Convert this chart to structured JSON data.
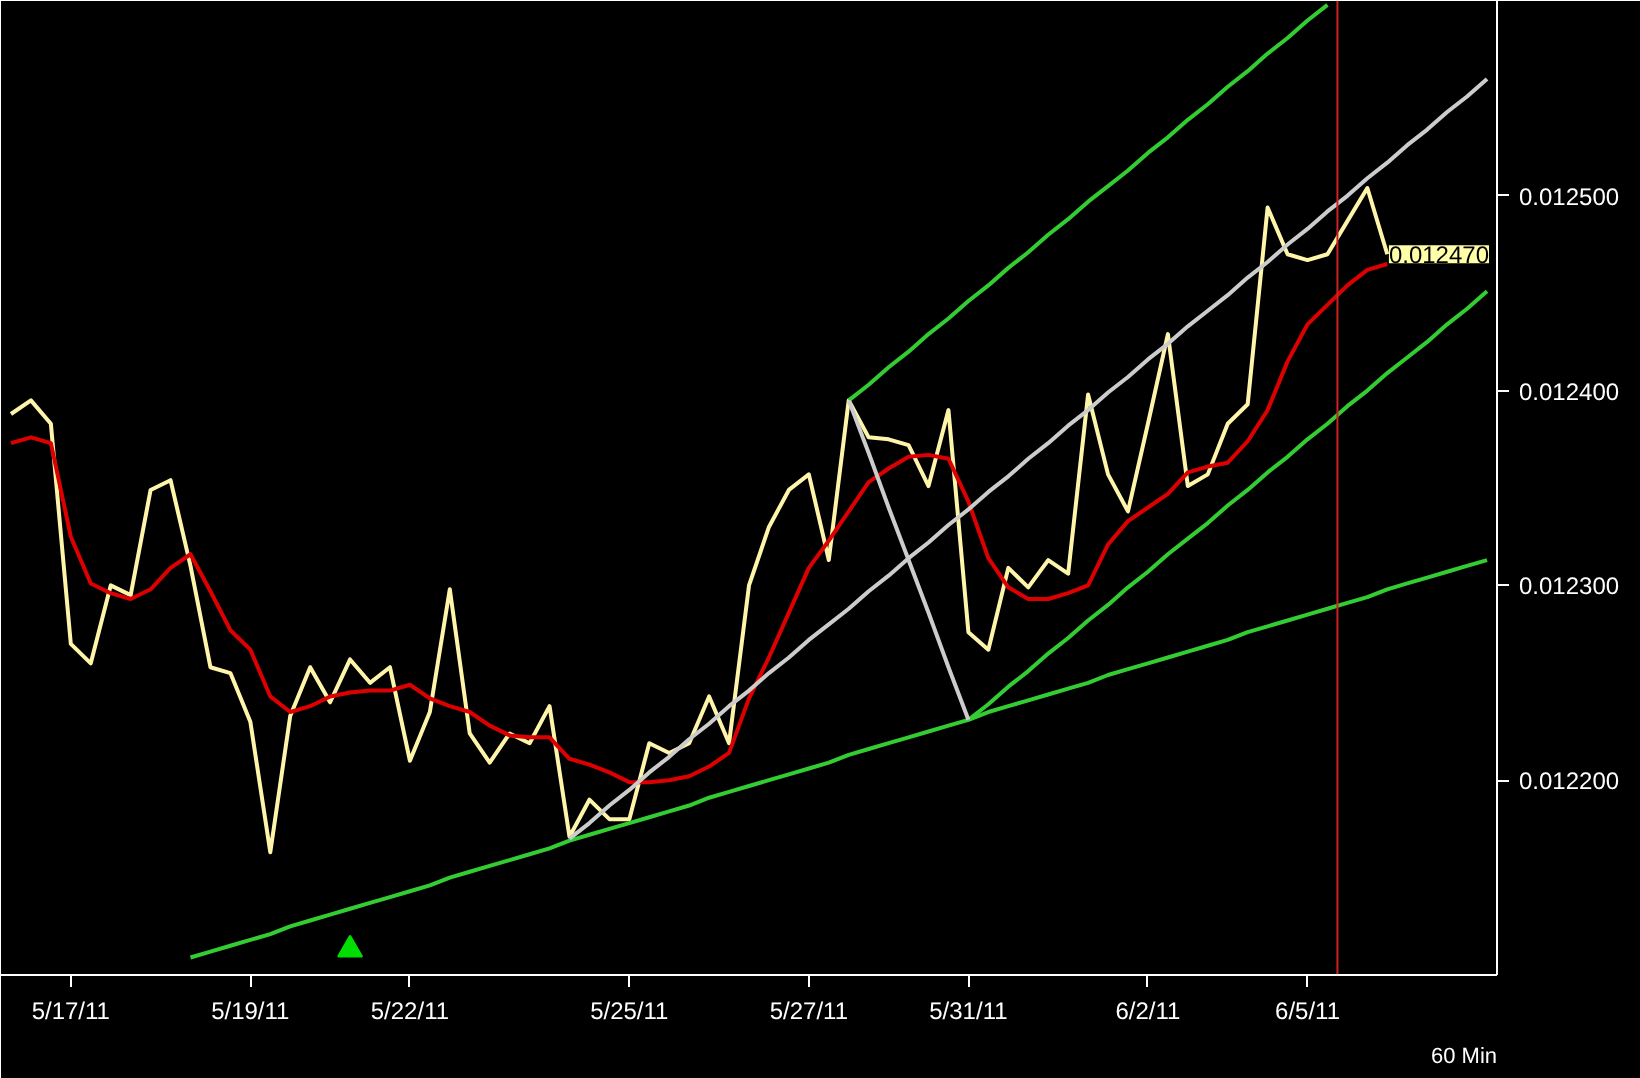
{
  "chart_data": {
    "type": "line",
    "categories": [
      null,
      null,
      null,
      "5/17/11",
      null,
      null,
      null,
      null,
      null,
      null,
      null,
      null,
      "5/19/11",
      null,
      null,
      null,
      null,
      null,
      null,
      null,
      "5/22/11",
      null,
      null,
      null,
      null,
      null,
      null,
      null,
      null,
      null,
      null,
      "5/25/11",
      null,
      null,
      null,
      null,
      null,
      null,
      null,
      null,
      "5/27/11",
      null,
      null,
      null,
      null,
      null,
      null,
      null,
      "5/31/11",
      null,
      null,
      null,
      null,
      null,
      null,
      null,
      null,
      "6/2/11",
      null,
      null,
      null,
      null,
      null,
      null,
      null,
      "6/5/11",
      null,
      null,
      null,
      null,
      null,
      null,
      null,
      null,
      null
    ],
    "ylim": [
      0.0121,
      0.0126
    ],
    "yticks": [
      {
        "value": 0.0122,
        "label": "0.012200"
      },
      {
        "value": 0.0123,
        "label": "0.012300"
      },
      {
        "value": 0.0124,
        "label": "0.012400"
      },
      {
        "value": 0.0125,
        "label": "0.012500"
      }
    ],
    "series": [
      {
        "color": "#fff5aa",
        "values": [
          0.012388,
          0.012395,
          0.012383,
          0.01227,
          0.01226,
          0.0123,
          0.012295,
          0.012349,
          0.012354,
          0.01231,
          0.012258,
          0.012255,
          0.01223,
          0.012163,
          0.012233,
          0.012258,
          0.01224,
          0.012262,
          0.01225,
          0.012258,
          0.01221,
          0.012235,
          0.012298,
          0.012224,
          0.012209,
          0.012224,
          0.012219,
          0.012238,
          0.012171,
          0.01219,
          0.01218,
          0.01218,
          0.012219,
          0.012214,
          0.012219,
          0.012243,
          0.012219,
          0.0123,
          0.01233,
          0.012349,
          0.012357,
          0.012313,
          0.012395,
          0.012376,
          0.012375,
          0.012372,
          0.012351,
          0.01239,
          0.012276,
          0.012267,
          0.012309,
          0.012299,
          0.012313,
          0.012306,
          0.012398,
          0.012357,
          0.012338,
          0.012383,
          0.012429,
          0.012351,
          0.012357,
          0.012383,
          0.012393,
          0.012494,
          0.01247,
          0.012467,
          0.01247,
          0.012487,
          0.012504,
          0.01247,
          null,
          null,
          null,
          null,
          null
        ]
      },
      {
        "color": "#dd0000",
        "values": [
          0.012373,
          0.012376,
          0.012373,
          0.012325,
          0.012301,
          0.012296,
          0.012293,
          0.012298,
          0.012309,
          0.012316,
          0.012297,
          0.012277,
          0.012267,
          0.012243,
          0.012235,
          0.012238,
          0.012243,
          0.012245,
          0.012246,
          0.012246,
          0.012249,
          0.012242,
          0.012238,
          0.012235,
          0.012228,
          0.012223,
          0.012222,
          0.012222,
          0.012211,
          0.012208,
          0.012204,
          0.012199,
          0.012199,
          0.0122,
          0.012202,
          0.012207,
          0.012214,
          0.012242,
          0.012263,
          0.012286,
          0.012309,
          0.012323,
          0.012338,
          0.012353,
          0.01236,
          0.012366,
          0.012367,
          0.012365,
          0.012343,
          0.012314,
          0.012299,
          0.012293,
          0.012293,
          0.012296,
          0.0123,
          0.012321,
          0.012333,
          0.01234,
          0.012347,
          0.012358,
          0.012361,
          0.012363,
          0.012374,
          0.01239,
          0.012415,
          0.012434,
          0.012444,
          0.012454,
          0.012462,
          0.012465,
          null,
          null,
          null,
          null,
          null
        ]
      },
      {
        "color": "#33cc33",
        "values": [
          null,
          null,
          null,
          null,
          null,
          null,
          null,
          null,
          null,
          0.012109,
          0.012112,
          0.012115,
          0.012118,
          0.012121,
          0.012125,
          0.012128,
          0.012131,
          0.012134,
          0.012137,
          0.01214,
          0.012143,
          0.012146,
          0.01215,
          0.012153,
          0.012156,
          0.012159,
          0.012162,
          0.012165,
          0.012169,
          0.012172,
          0.012175,
          0.012178,
          0.012181,
          0.012184,
          0.012187,
          0.012191,
          0.012194,
          0.012197,
          0.0122,
          0.012203,
          0.012206,
          0.012209,
          0.012213,
          0.012216,
          0.012219,
          0.012222,
          0.012225,
          0.012228,
          0.012231,
          0.012235,
          0.012238,
          0.012241,
          0.012244,
          0.012247,
          0.01225,
          0.012254,
          0.012257,
          0.01226,
          0.012263,
          0.012266,
          0.012269,
          0.012272,
          0.012276,
          0.012279,
          0.012282,
          0.012285,
          0.012288,
          0.012291,
          0.012294,
          0.012298,
          0.012301,
          0.012304,
          0.012307,
          0.01231,
          0.012313
        ]
      },
      {
        "color": "#33cc33",
        "values": [
          null,
          null,
          null,
          null,
          null,
          null,
          null,
          null,
          null,
          null,
          null,
          null,
          null,
          null,
          null,
          null,
          null,
          null,
          null,
          null,
          null,
          null,
          null,
          null,
          null,
          null,
          null,
          null,
          null,
          null,
          null,
          null,
          null,
          null,
          null,
          null,
          null,
          null,
          null,
          null,
          null,
          null,
          null,
          null,
          null,
          null,
          null,
          null,
          0.012231,
          0.012239,
          0.012248,
          0.012256,
          0.012265,
          0.012273,
          0.012282,
          0.01229,
          0.012299,
          0.012307,
          0.012316,
          0.012324,
          0.012332,
          0.012341,
          0.012349,
          0.012358,
          0.012366,
          0.012375,
          0.012383,
          0.012392,
          0.0124,
          0.012409,
          0.012417,
          0.012425,
          0.012434,
          0.012442,
          0.012451
        ]
      },
      {
        "color": "#33cc33",
        "values": [
          null,
          null,
          null,
          null,
          null,
          null,
          null,
          null,
          null,
          null,
          null,
          null,
          null,
          null,
          null,
          null,
          null,
          null,
          null,
          null,
          null,
          null,
          null,
          null,
          null,
          null,
          null,
          null,
          null,
          null,
          null,
          null,
          null,
          null,
          null,
          null,
          null,
          null,
          null,
          null,
          null,
          null,
          0.012395,
          0.012403,
          0.012412,
          0.01242,
          0.012429,
          0.012437,
          0.012446,
          0.012454,
          0.012463,
          0.012471,
          0.01248,
          0.012488,
          0.012497,
          0.012505,
          0.012513,
          0.012522,
          0.01253,
          0.012539,
          0.012547,
          0.012556,
          0.012564,
          0.012573,
          0.012581,
          0.01259,
          0.012598,
          null,
          null,
          null,
          null,
          null,
          null,
          null,
          null
        ]
      },
      {
        "color": "#cccccc",
        "values": [
          null,
          null,
          null,
          null,
          null,
          null,
          null,
          null,
          null,
          null,
          null,
          null,
          null,
          null,
          null,
          null,
          null,
          null,
          null,
          null,
          null,
          null,
          null,
          null,
          null,
          null,
          null,
          null,
          0.01217,
          0.012178,
          0.012187,
          0.012195,
          0.012204,
          0.012212,
          0.012221,
          0.012229,
          0.012238,
          0.012246,
          0.012255,
          0.012263,
          0.012272,
          0.01228,
          0.012288,
          0.012297,
          0.012305,
          0.012314,
          0.012322,
          0.012331,
          0.012339,
          0.012348,
          0.012356,
          0.012365,
          0.012373,
          0.012382,
          0.01239,
          0.012399,
          0.012407,
          0.012416,
          0.012424,
          0.012433,
          0.012441,
          0.012449,
          0.012458,
          0.012466,
          0.012475,
          0.012483,
          0.012492,
          0.0125,
          0.012509,
          0.012517,
          0.012526,
          0.012534,
          0.012543,
          0.012551,
          0.01256
        ]
      },
      {
        "color": "#cccccc",
        "values": [
          null,
          null,
          null,
          null,
          null,
          null,
          null,
          null,
          null,
          null,
          null,
          null,
          null,
          null,
          null,
          null,
          null,
          null,
          null,
          null,
          null,
          null,
          null,
          null,
          null,
          null,
          null,
          null,
          null,
          null,
          null,
          null,
          null,
          null,
          null,
          null,
          null,
          null,
          null,
          null,
          null,
          null,
          0.012395,
          0.012368,
          0.01234,
          0.012313,
          0.012286,
          0.012258,
          0.012231,
          null,
          null,
          null,
          null,
          null,
          null,
          null,
          null,
          null,
          null,
          null,
          null,
          null,
          null,
          null,
          null,
          null,
          null,
          null,
          null,
          null,
          null,
          null,
          null,
          null,
          null
        ]
      },
      {
        "type": "scatter",
        "marker": "triangle",
        "color": "#00dd00",
        "values": [
          null,
          null,
          null,
          null,
          null,
          null,
          null,
          null,
          null,
          null,
          null,
          null,
          null,
          null,
          null,
          null,
          null,
          0.012113,
          null,
          null,
          null,
          null,
          null,
          null,
          null,
          null,
          null,
          null,
          null,
          null,
          null,
          null,
          null,
          null,
          null,
          null,
          null,
          null,
          null,
          null,
          null,
          null,
          null,
          null,
          null,
          null,
          null,
          null,
          null,
          null,
          null,
          null,
          null,
          null,
          null,
          null,
          null,
          null,
          null,
          null,
          null,
          null,
          null,
          null,
          null,
          null,
          null,
          null,
          null,
          null,
          null,
          null,
          null,
          null,
          null
        ]
      }
    ],
    "annotations": [
      "0.012470",
      "60 Min"
    ]
  }
}
